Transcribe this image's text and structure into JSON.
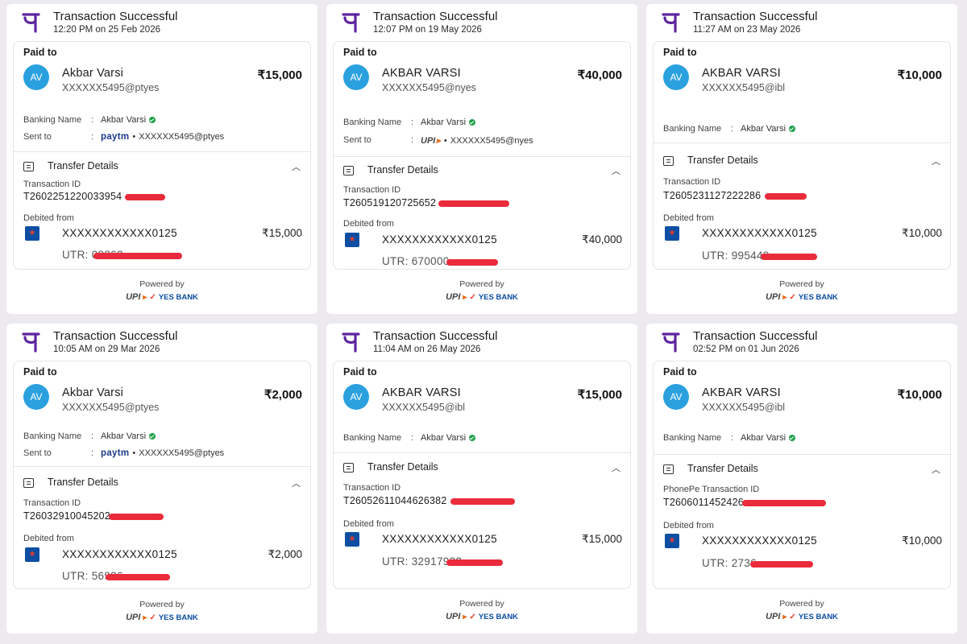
{
  "common": {
    "title": "Transaction Successful",
    "paid_to_label": "Paid to",
    "banking_name_label": "Banking Name",
    "sent_to_label": "Sent to",
    "colon": ":",
    "transfer_details_label": "Transfer Details",
    "debited_from_label": "Debited from",
    "powered_by": "Powered by",
    "upi_text": "UPI",
    "yes_bank_text": "YES BANK",
    "paytm_text": "paytm",
    "chevron_glyph": "︿",
    "dot": "•",
    "bank_icon_glyph": "★",
    "colors": {
      "phonepe_purple": "#5f259f",
      "avatar_blue": "#2aa0df",
      "redaction_red": "#ea2b3b",
      "verified_green": "#1e9e48"
    }
  },
  "receipts": [
    {
      "time": "12:20 PM on 25 Feb 2026",
      "initials": "AV",
      "name": "Akbar Varsi",
      "upi_id": "XXXXXX5495@ptyes",
      "amount": "₹15,000",
      "banking_name": "Akbar Varsi",
      "sent_to_app": "paytm",
      "sent_to_id": "XXXXXX5495@ptyes",
      "txn_id_label": "Transaction ID",
      "txn_id": "T2602251220033954",
      "account": "XXXXXXXXXXXX0125",
      "debit_amount": "₹15,000",
      "utr": "UTR: 08862"
    },
    {
      "time": "12:07 PM on 19 May 2026",
      "initials": "AV",
      "name": "AKBAR VARSI",
      "upi_id": "XXXXXX5495@nyes",
      "amount": "₹40,000",
      "banking_name": "Akbar Varsi",
      "sent_to_app": "upi",
      "sent_to_id": "XXXXXX5495@nyes",
      "txn_id_label": "Transaction ID",
      "txn_id": "T260519120725652",
      "account": "XXXXXXXXXXXX0125",
      "debit_amount": "₹40,000",
      "utr": "UTR: 670000"
    },
    {
      "time": "11:27 AM on 23 May 2026",
      "initials": "AV",
      "name": "AKBAR VARSI",
      "upi_id": "XXXXXX5495@ibl",
      "amount": "₹10,000",
      "banking_name": "Akbar Varsi",
      "sent_to_app": "",
      "sent_to_id": "",
      "txn_id_label": "Transaction ID",
      "txn_id": "T2605231127222286",
      "account": "XXXXXXXXXXXX0125",
      "debit_amount": "₹10,000",
      "utr": "UTR: 995448"
    },
    {
      "time": "10:05 AM on 29 Mar 2026",
      "initials": "AV",
      "name": "Akbar Varsi",
      "upi_id": "XXXXXX5495@ptyes",
      "amount": "₹2,000",
      "banking_name": "Akbar Varsi",
      "sent_to_app": "paytm",
      "sent_to_id": "XXXXXX5495@ptyes",
      "txn_id_label": "Transaction ID",
      "txn_id": "T26032910045202",
      "account": "XXXXXXXXXXXX0125",
      "debit_amount": "₹2,000",
      "utr": "UTR: 56936"
    },
    {
      "time": "11:04 AM on 26 May 2026",
      "initials": "AV",
      "name": "AKBAR VARSI",
      "upi_id": "XXXXXX5495@ibl",
      "amount": "₹15,000",
      "banking_name": "Akbar Varsi",
      "sent_to_app": "",
      "sent_to_id": "",
      "txn_id_label": "Transaction ID",
      "txn_id": "T26052611044626382",
      "account": "XXXXXXXXXXXX0125",
      "debit_amount": "₹15,000",
      "utr": "UTR: 32917932"
    },
    {
      "time": "02:52 PM on 01 Jun 2026",
      "initials": "AV",
      "name": "AKBAR VARSI",
      "upi_id": "XXXXXX5495@ibl",
      "amount": "₹10,000",
      "banking_name": "Akbar Varsi",
      "sent_to_app": "",
      "sent_to_id": "",
      "txn_id_label": "PhonePe Transaction ID",
      "txn_id": "T2606011452426",
      "account": "XXXXXXXXXXXX0125",
      "debit_amount": "₹10,000",
      "utr": "UTR: 2736"
    }
  ]
}
